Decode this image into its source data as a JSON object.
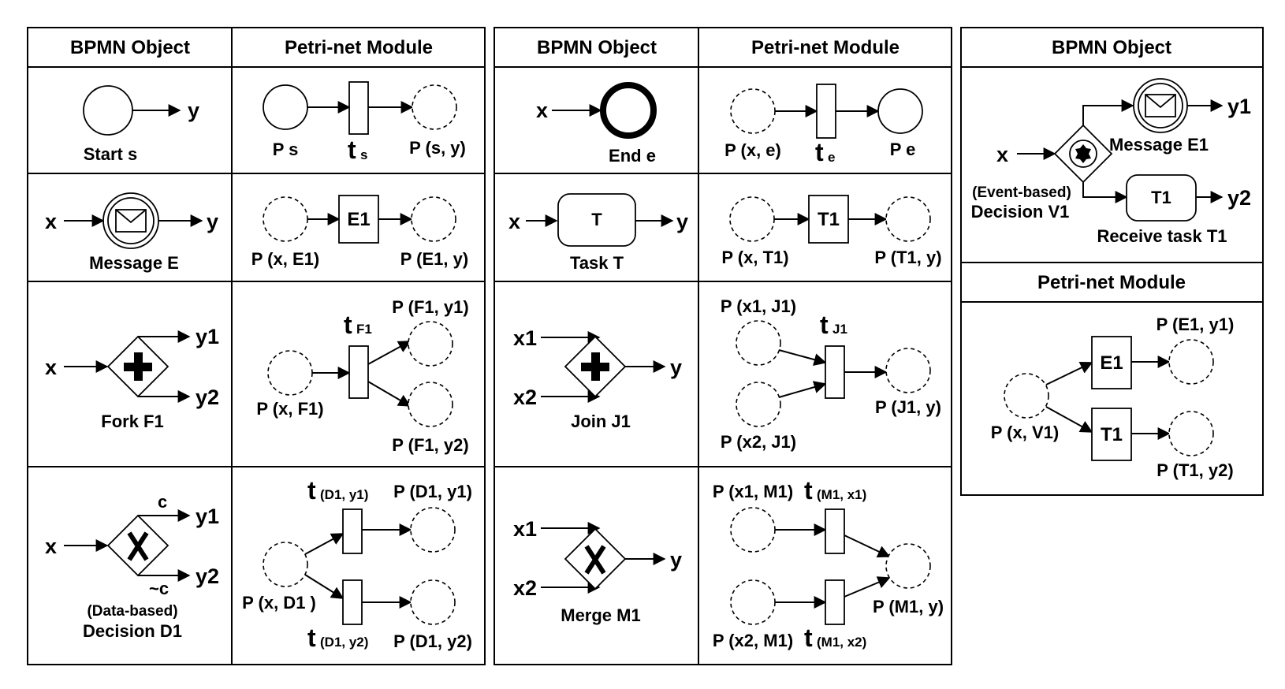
{
  "headers": {
    "bpmn_object": "BPMN Object",
    "petri_net_module": "Petri-net Module"
  },
  "start": {
    "bpmn_out": "y",
    "bpmn_name": "Start  s",
    "place_in": "P s",
    "trans": "t",
    "trans_sub": "s",
    "place_out": "P (s, y)"
  },
  "end": {
    "bpmn_in": "x",
    "bpmn_name": "End  e",
    "place_in": "P (x, e)",
    "trans": "t",
    "trans_sub": "e",
    "place_out": "P e"
  },
  "message": {
    "bpmn_in": "x",
    "bpmn_out": "y",
    "bpmn_name": "Message  E",
    "trans": "E1",
    "place_in": "P (x, E1)",
    "place_out": "P (E1, y)"
  },
  "task": {
    "bpmn_in": "x",
    "bpmn_out": "y",
    "box": "T",
    "bpmn_name": "Task  T",
    "trans": "T1",
    "place_in": "P (x, T1)",
    "place_out": "P (T1, y)"
  },
  "fork": {
    "bpmn_in": "x",
    "out1": "y1",
    "out2": "y2",
    "bpmn_name": "Fork  F1",
    "trans": "t",
    "trans_sub": "F1",
    "place_in": "P (x, F1)",
    "place_out1": "P (F1, y1)",
    "place_out2": "P (F1, y2)"
  },
  "join": {
    "in1": "x1",
    "in2": "x2",
    "out": "y",
    "bpmn_name": "Join  J1",
    "trans": "t",
    "trans_sub": "J1",
    "place_in1": "P (x1, J1)",
    "place_in2": "P (x2, J1)",
    "place_out": "P (J1, y)"
  },
  "decision": {
    "bpmn_in": "x",
    "out1": "y1",
    "out2": "y2",
    "cond": "c",
    "not_cond": "~c",
    "name_line1": "(Data-based)",
    "name_line2": "Decision  D1",
    "trans1": "t",
    "trans1_sub": "(D1, y1)",
    "trans2": "t",
    "trans2_sub": "(D1, y2)",
    "place_in": "P (x, D1 )",
    "place_out1": "P (D1, y1)",
    "place_out2": "P (D1, y2)"
  },
  "merge": {
    "in1": "x1",
    "in2": "x2",
    "out": "y",
    "bpmn_name": "Merge  M1",
    "place_in1": "P (x1, M1)",
    "place_in2": "P (x2, M1)",
    "trans1": "t",
    "trans1_sub": "(M1, x1)",
    "trans2": "t",
    "trans2_sub": "(M1, x2)",
    "place_out": "P (M1, y)"
  },
  "event_decision": {
    "bpmn_in": "x",
    "out1": "y1",
    "out2": "y2",
    "event_name": "Message E1",
    "task_box": "T1",
    "task_name": "Receive task T1",
    "name_line1": "(Event-based)",
    "name_line2": "Decision  V1",
    "place_in": "P (x, V1)",
    "trans1": "E1",
    "trans2": "T1",
    "place_out1": "P (E1, y1)",
    "place_out2": "P (T1, y2)"
  }
}
